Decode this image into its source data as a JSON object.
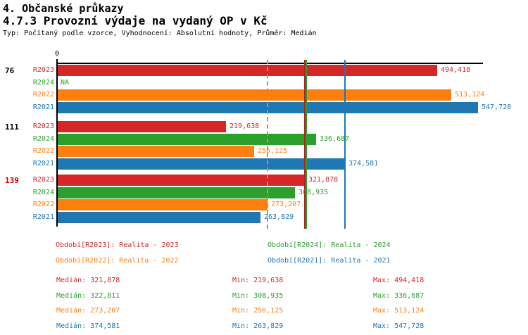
{
  "header": {
    "title_line1": "4. Občanské průkazy",
    "title_line2": "4.7.3 Provozní výdaje na vydaný OP v Kč",
    "subtitle": "Typ: Počítaný podle vzorce, Vyhodnocení: Absolutní hodnoty, Průměr: Medián"
  },
  "colors": {
    "red": "#d62728",
    "green": "#2ca02c",
    "orange": "#ff7f0e",
    "blue": "#1f77b4",
    "axis": "#000000",
    "highlight_group": "#cc0000",
    "median_red": "#b22222"
  },
  "chart_data": {
    "type": "bar",
    "orientation": "horizontal",
    "title": "4.7.3 Provozní výdaje na vydaný OP v Kč",
    "zero_label": "0",
    "xlim": [
      0,
      612000
    ],
    "grid": false,
    "series": [
      {
        "id": "R2023",
        "label": "R2023",
        "color": "#d62728"
      },
      {
        "id": "R2024",
        "label": "R2024",
        "color": "#2ca02c"
      },
      {
        "id": "R2022",
        "label": "R2022",
        "color": "#ff7f0e"
      },
      {
        "id": "R2021",
        "label": "R2021",
        "color": "#1f77b4"
      }
    ],
    "groups": [
      {
        "label": "76",
        "highlighted": false,
        "bars": [
          {
            "series": "R2023",
            "value": 494418,
            "display": "494,418"
          },
          {
            "series": "R2024",
            "value": null,
            "display": "NA"
          },
          {
            "series": "R2022",
            "value": 513124,
            "display": "513,124"
          },
          {
            "series": "R2021",
            "value": 547728,
            "display": "547,728"
          }
        ]
      },
      {
        "label": "111",
        "highlighted": false,
        "bars": [
          {
            "series": "R2023",
            "value": 219638,
            "display": "219,638"
          },
          {
            "series": "R2024",
            "value": 336687,
            "display": "336,687"
          },
          {
            "series": "R2022",
            "value": 256125,
            "display": "256,125"
          },
          {
            "series": "R2021",
            "value": 374581,
            "display": "374,581"
          }
        ]
      },
      {
        "label": "139",
        "highlighted": true,
        "bars": [
          {
            "series": "R2023",
            "value": 321878,
            "display": "321,878"
          },
          {
            "series": "R2024",
            "value": 308935,
            "display": "308,935"
          },
          {
            "series": "R2022",
            "value": 273207,
            "display": "273,207"
          },
          {
            "series": "R2021",
            "value": 263829,
            "display": "263,829"
          }
        ]
      }
    ],
    "median_lines": [
      {
        "series": "R2022",
        "value": 273207,
        "display": "273,207",
        "style": "dashed",
        "color": "#ff7f0e"
      },
      {
        "series": "R2023",
        "value": 321878,
        "display": "321,878",
        "style": "solid",
        "color": "#b22222"
      },
      {
        "series": "R2024",
        "value": 322811,
        "display": "322,811",
        "style": "solid",
        "color": "#2ca02c"
      },
      {
        "series": "R2021",
        "value": 374581,
        "display": "374,581",
        "style": "solid",
        "color": "#1f77b4"
      }
    ]
  },
  "legend": {
    "items": [
      {
        "label": "Období[R2023]: Realita - 2023",
        "color": "#d62728",
        "col": 0,
        "row": 0
      },
      {
        "label": "Období[R2024]: Realita - 2024",
        "color": "#2ca02c",
        "col": 1,
        "row": 0
      },
      {
        "label": "Období[R2022]: Realita - 2022",
        "color": "#ff7f0e",
        "col": 0,
        "row": 1
      },
      {
        "label": "Období[R2021]: Realita - 2021",
        "color": "#1f77b4",
        "col": 1,
        "row": 1
      }
    ]
  },
  "stats": {
    "col_labels": {
      "median": "Medián",
      "min": "Min",
      "max": "Max"
    },
    "rows": [
      {
        "series": "R2023",
        "color": "#d62728",
        "median": "321,878",
        "min": "219,638",
        "max": "494,418"
      },
      {
        "series": "R2024",
        "color": "#2ca02c",
        "median": "322,811",
        "min": "308,935",
        "max": "336,687"
      },
      {
        "series": "R2022",
        "color": "#ff7f0e",
        "median": "273,207",
        "min": "256,125",
        "max": "513,124"
      },
      {
        "series": "R2021",
        "color": "#1f77b4",
        "median": "374,581",
        "min": "263,829",
        "max": "547,728"
      }
    ]
  }
}
